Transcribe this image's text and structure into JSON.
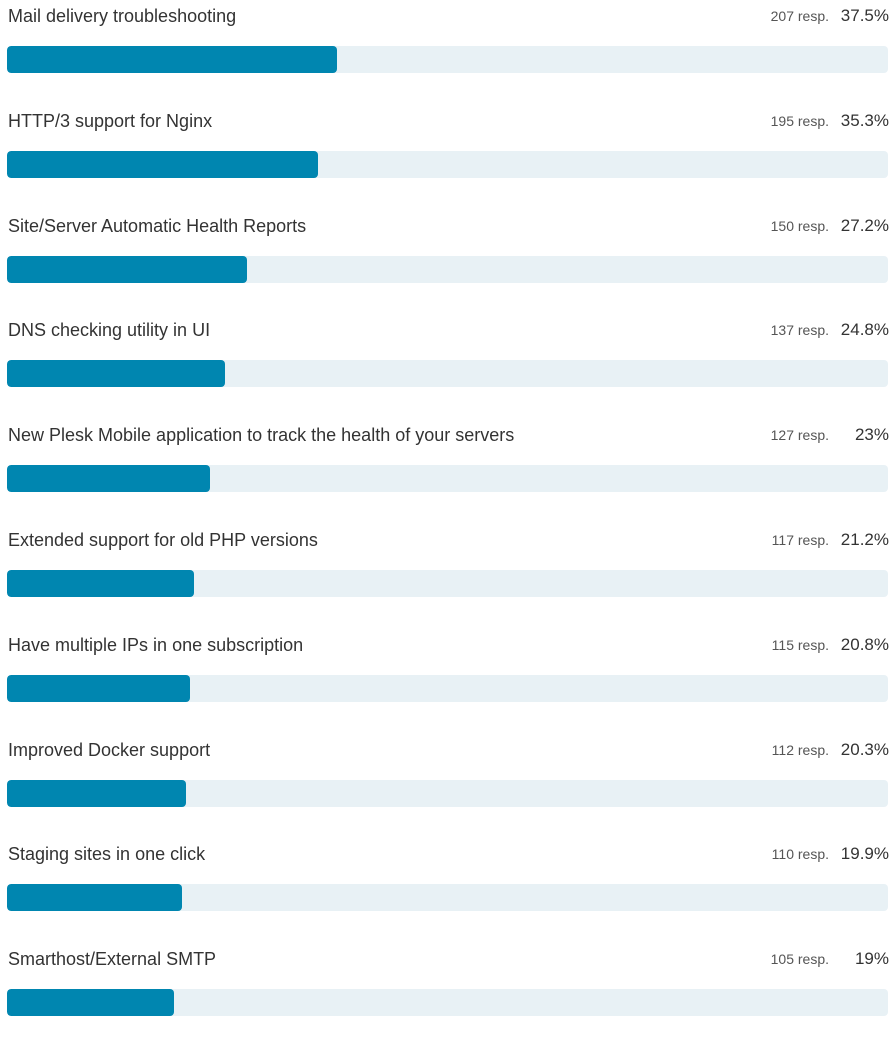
{
  "chart_data": {
    "type": "bar",
    "orientation": "horizontal",
    "count_suffix": " resp.",
    "categories": [
      "Mail delivery troubleshooting",
      "HTTP/3 support for Nginx",
      "Site/Server Automatic Health Reports",
      "DNS checking utility in UI",
      "New Plesk Mobile application to track the health of your servers",
      "Extended support for old PHP versions",
      "Have multiple IPs in one subscription",
      "Improved Docker support",
      "Staging sites in one click",
      "Smarthost/External SMTP"
    ],
    "responses": [
      207,
      195,
      150,
      137,
      127,
      117,
      115,
      112,
      110,
      105
    ],
    "percent_labels": [
      "37.5%",
      "35.3%",
      "27.2%",
      "24.8%",
      "23%",
      "21.2%",
      "20.8%",
      "20.3%",
      "19.9%",
      "19%"
    ],
    "values": [
      37.5,
      35.3,
      27.2,
      24.8,
      23,
      21.2,
      20.8,
      20.3,
      19.9,
      19
    ],
    "xlim": [
      0,
      100
    ],
    "colors": {
      "bar": "#0086b0",
      "track": "#e8f1f5"
    }
  }
}
